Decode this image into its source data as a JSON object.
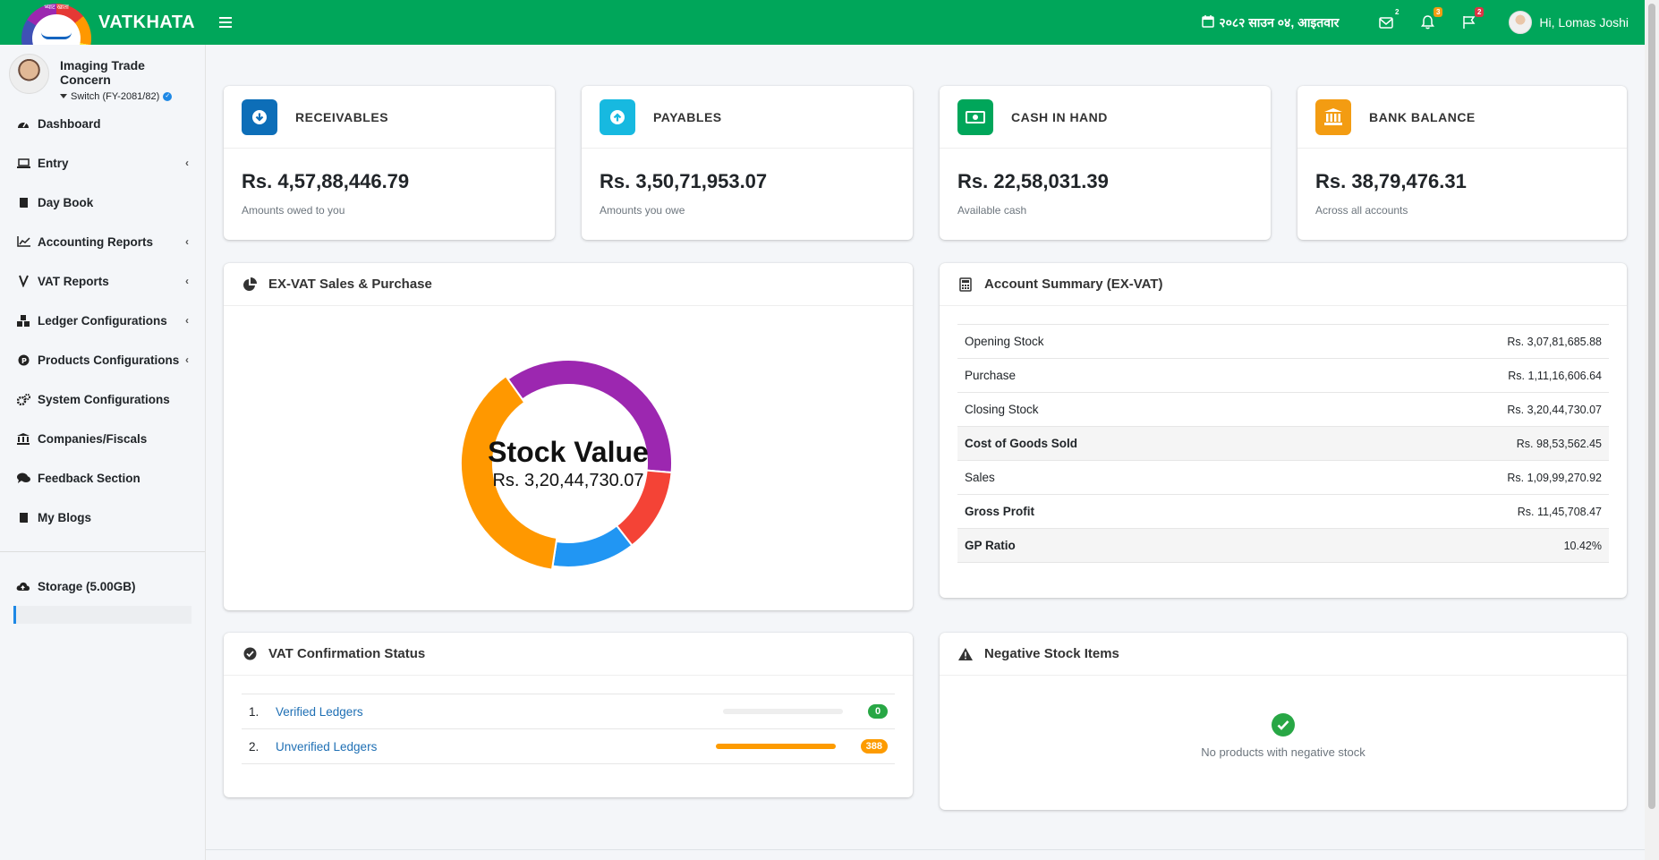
{
  "brand": {
    "name": "VATKHATA",
    "logo_text": "भ्याट खाता"
  },
  "topbar": {
    "date": "२०८२ साउन ०४, आइतवार",
    "mail_badge": "2",
    "bell_badge": "3",
    "flag_badge": "2",
    "user_greeting": "Hi, Lomas Joshi"
  },
  "sidebar": {
    "company_name": "Imaging Trade Concern",
    "switch_label": "Switch (FY-2081/82)",
    "items": [
      {
        "label": "Dashboard",
        "icon": "dashboard-icon"
      },
      {
        "label": "Entry",
        "icon": "laptop-icon"
      },
      {
        "label": "Day Book",
        "icon": "book-icon"
      },
      {
        "label": "Accounting Reports",
        "icon": "chart-line-icon"
      },
      {
        "label": "VAT Reports",
        "icon": "receipt-icon"
      },
      {
        "label": "Ledger Configurations",
        "icon": "cubes-icon"
      },
      {
        "label": "Products Configurations",
        "icon": "product-icon"
      },
      {
        "label": "System Configurations",
        "icon": "cogs-icon"
      },
      {
        "label": "Companies/Fiscals",
        "icon": "bank-icon"
      },
      {
        "label": "Feedback Section",
        "icon": "comments-icon"
      },
      {
        "label": "My Blogs",
        "icon": "book-icon"
      }
    ],
    "storage_label": "Storage (5.00GB)"
  },
  "stats": [
    {
      "title": "RECEIVABLES",
      "value": "Rs. 4,57,88,446.79",
      "sub": "Amounts owed to you",
      "color": "#0d6eb8"
    },
    {
      "title": "PAYABLES",
      "value": "Rs. 3,50,71,953.07",
      "sub": "Amounts you owe",
      "color": "#17b9e0"
    },
    {
      "title": "CASH IN HAND",
      "value": "Rs. 22,58,031.39",
      "sub": "Available cash",
      "color": "#00a65a"
    },
    {
      "title": "BANK BALANCE",
      "value": "Rs. 38,79,476.31",
      "sub": "Across all accounts",
      "color": "#f39c12"
    }
  ],
  "sales_purchase": {
    "title": "EX-VAT Sales & Purchase",
    "center_title": "Stock Value",
    "center_value": "Rs. 3,20,44,730.07"
  },
  "chart_data": {
    "type": "pie",
    "subtype": "donut",
    "colors": [
      "#9c27b0",
      "#f44336",
      "#2196f3",
      "#ff9800"
    ],
    "values": [
      30781685.88,
      11116606.64,
      10999270.92,
      32044730.07
    ],
    "legend": "none"
  },
  "account_summary": {
    "title": "Account Summary (EX-VAT)",
    "rows": [
      {
        "label": "Opening Stock",
        "value": "Rs. 3,07,81,685.88"
      },
      {
        "label": "Purchase",
        "value": "Rs. 1,11,16,606.64"
      },
      {
        "label": "Closing Stock",
        "value": "Rs. 3,20,44,730.07"
      },
      {
        "label": "Cost of Goods Sold",
        "value": "Rs. 98,53,562.45"
      },
      {
        "label": "Sales",
        "value": "Rs. 1,09,99,270.92"
      },
      {
        "label": "Gross Profit",
        "value": "Rs. 11,45,708.47"
      },
      {
        "label": "GP Ratio",
        "value": "10.42%"
      }
    ]
  },
  "vat_status": {
    "title": "VAT Confirmation Status",
    "rows": [
      {
        "num": "1.",
        "label": "Verified Ledgers",
        "count": "0",
        "progress": 0,
        "badge_color": "#28a745"
      },
      {
        "num": "2.",
        "label": "Unverified Ledgers",
        "count": "388",
        "progress": 1,
        "badge_color": "#fd9b00"
      }
    ]
  },
  "negative_stock": {
    "title": "Negative Stock Items",
    "message": "No products with negative stock"
  }
}
